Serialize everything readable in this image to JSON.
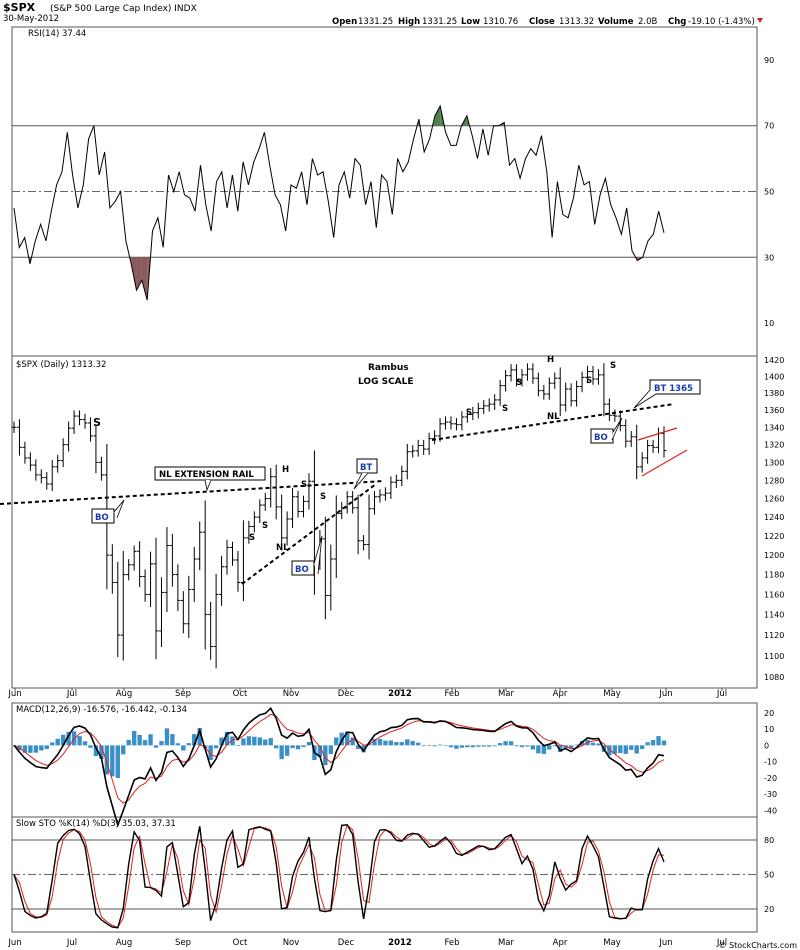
{
  "header": {
    "symbol": "$SPX",
    "name": "(S&P 500 Large Cap Index) INDX",
    "date": "30-May-2012",
    "quote_open_label": "Open",
    "quote_open": "1331.25",
    "quote_high_label": "High",
    "quote_high": "1331.25",
    "quote_low_label": "Low",
    "quote_low": "1310.76",
    "quote_close_label": "Close",
    "quote_close": "1313.32",
    "quote_volume_label": "Volume",
    "quote_volume": "2.0B",
    "quote_chg_label": "Chg",
    "quote_chg": "-19.10 (-1.43%)",
    "watermark": "© StockCharts.com"
  },
  "x_axis": {
    "labels": [
      "Jun",
      "Jul",
      "Aug",
      "Sep",
      "Oct",
      "Nov",
      "Dec",
      "2012",
      "Feb",
      "Mar",
      "Apr",
      "May",
      "Jun",
      "Jul"
    ]
  },
  "chart_data": [
    {
      "type": "line",
      "panel": "RSI",
      "title": "RSI(14) 37.44",
      "ylim": [
        0,
        100
      ],
      "yticks": [
        10,
        30,
        50,
        70,
        90
      ],
      "overbought": 70,
      "oversold": 30,
      "midline": 50,
      "x_start": "2011-06-01",
      "x_end": "2012-05-30",
      "series": [
        {
          "values": [
            45,
            33,
            36,
            28,
            35,
            40,
            35,
            44,
            52,
            56,
            68,
            55,
            45,
            52,
            66,
            70,
            55,
            62,
            45,
            47,
            50,
            35,
            28,
            20,
            23,
            17,
            38,
            42,
            33,
            55,
            50,
            56,
            49,
            48,
            44,
            58,
            46,
            38,
            53,
            56,
            45,
            55,
            44,
            59,
            52,
            59,
            63,
            68,
            58,
            49,
            46,
            38,
            52,
            51,
            56,
            46,
            60,
            55,
            56,
            47,
            36,
            52,
            56,
            48,
            60,
            58,
            46,
            53,
            39,
            55,
            53,
            43,
            60,
            56,
            59,
            66,
            72,
            62,
            66,
            73,
            76,
            68,
            64,
            64,
            70,
            73,
            67,
            60,
            69,
            61,
            70,
            70,
            71,
            58,
            60,
            54,
            60,
            63,
            61,
            67,
            56,
            36,
            53,
            43,
            42,
            48,
            58,
            52,
            53,
            40,
            49,
            54,
            46,
            42,
            37,
            45,
            32,
            29,
            30,
            35,
            37,
            44,
            37.44
          ]
        }
      ]
    },
    {
      "type": "bar",
      "panel": "Price",
      "title": "$SPX (Daily) 1313.32",
      "scale": "log",
      "ylim": [
        1070,
        1425
      ],
      "yticks": [
        1080,
        1100,
        1120,
        1140,
        1160,
        1180,
        1200,
        1220,
        1240,
        1260,
        1280,
        1300,
        1320,
        1340,
        1360,
        1380,
        1400,
        1420
      ],
      "x_start": "2011-06-01",
      "x_end": "2012-05-30",
      "close": [
        1340,
        1317,
        1305,
        1297,
        1286,
        1283,
        1276,
        1295,
        1302,
        1320,
        1339,
        1353,
        1349,
        1345,
        1330,
        1300,
        1286,
        1200,
        1172,
        1120,
        1180,
        1190,
        1204,
        1178,
        1160,
        1191,
        1124,
        1162,
        1210,
        1180,
        1154,
        1131,
        1165,
        1196,
        1224,
        1140,
        1109,
        1160,
        1188,
        1208,
        1195,
        1172,
        1218,
        1230,
        1240,
        1253,
        1260,
        1284,
        1251,
        1218,
        1238,
        1262,
        1246,
        1257,
        1279,
        1194,
        1217,
        1159,
        1196,
        1244,
        1250,
        1262,
        1250,
        1215,
        1211,
        1249,
        1262,
        1264,
        1266,
        1278,
        1280,
        1290,
        1312,
        1313,
        1319,
        1315,
        1327,
        1330,
        1344,
        1346,
        1344,
        1343,
        1352,
        1355,
        1357,
        1362,
        1365,
        1367,
        1372,
        1389,
        1401,
        1408,
        1395,
        1402,
        1409,
        1398,
        1383,
        1379,
        1392,
        1398,
        1366,
        1385,
        1371,
        1388,
        1399,
        1406,
        1397,
        1402,
        1367,
        1354,
        1353,
        1342,
        1324,
        1329,
        1295,
        1305,
        1319,
        1317,
        1333,
        1313.32
      ]
    },
    {
      "type": "line",
      "panel": "MACD",
      "title": "MACD(12,26,9) -16.576, -16.442, -0.134",
      "ylim": [
        -44,
        26
      ],
      "yticks": [
        20,
        10,
        0,
        -10,
        -20,
        -30,
        -40
      ]
    },
    {
      "type": "line",
      "panel": "Slow STO",
      "title": "Slow STO %K(14) %D(3) 35.03, 37.31",
      "ylim": [
        0,
        100
      ],
      "yticks": [
        20,
        50,
        80
      ],
      "overbought": 80,
      "oversold": 20,
      "midline": 50
    }
  ],
  "annotations": {
    "author": "Rambus",
    "scale_note": "LOG SCALE",
    "neckline_rail": "NL EXTENSION RAIL",
    "shoulder_s": "S",
    "head_h": "H",
    "neckline_nl": "NL",
    "breakout_bo": "BO",
    "backtest_bt": "BT",
    "backtest_1365": "BT 1365"
  },
  "colors": {
    "rsi_overbought_fill": "#4f7f4f",
    "rsi_oversold_fill": "#8b5a5a",
    "macd_histogram": "#3a8fc8",
    "signal_line": "#dd2222",
    "annotation_box_text": "#1a3caa",
    "downtrend_channel": "#dd2222"
  }
}
